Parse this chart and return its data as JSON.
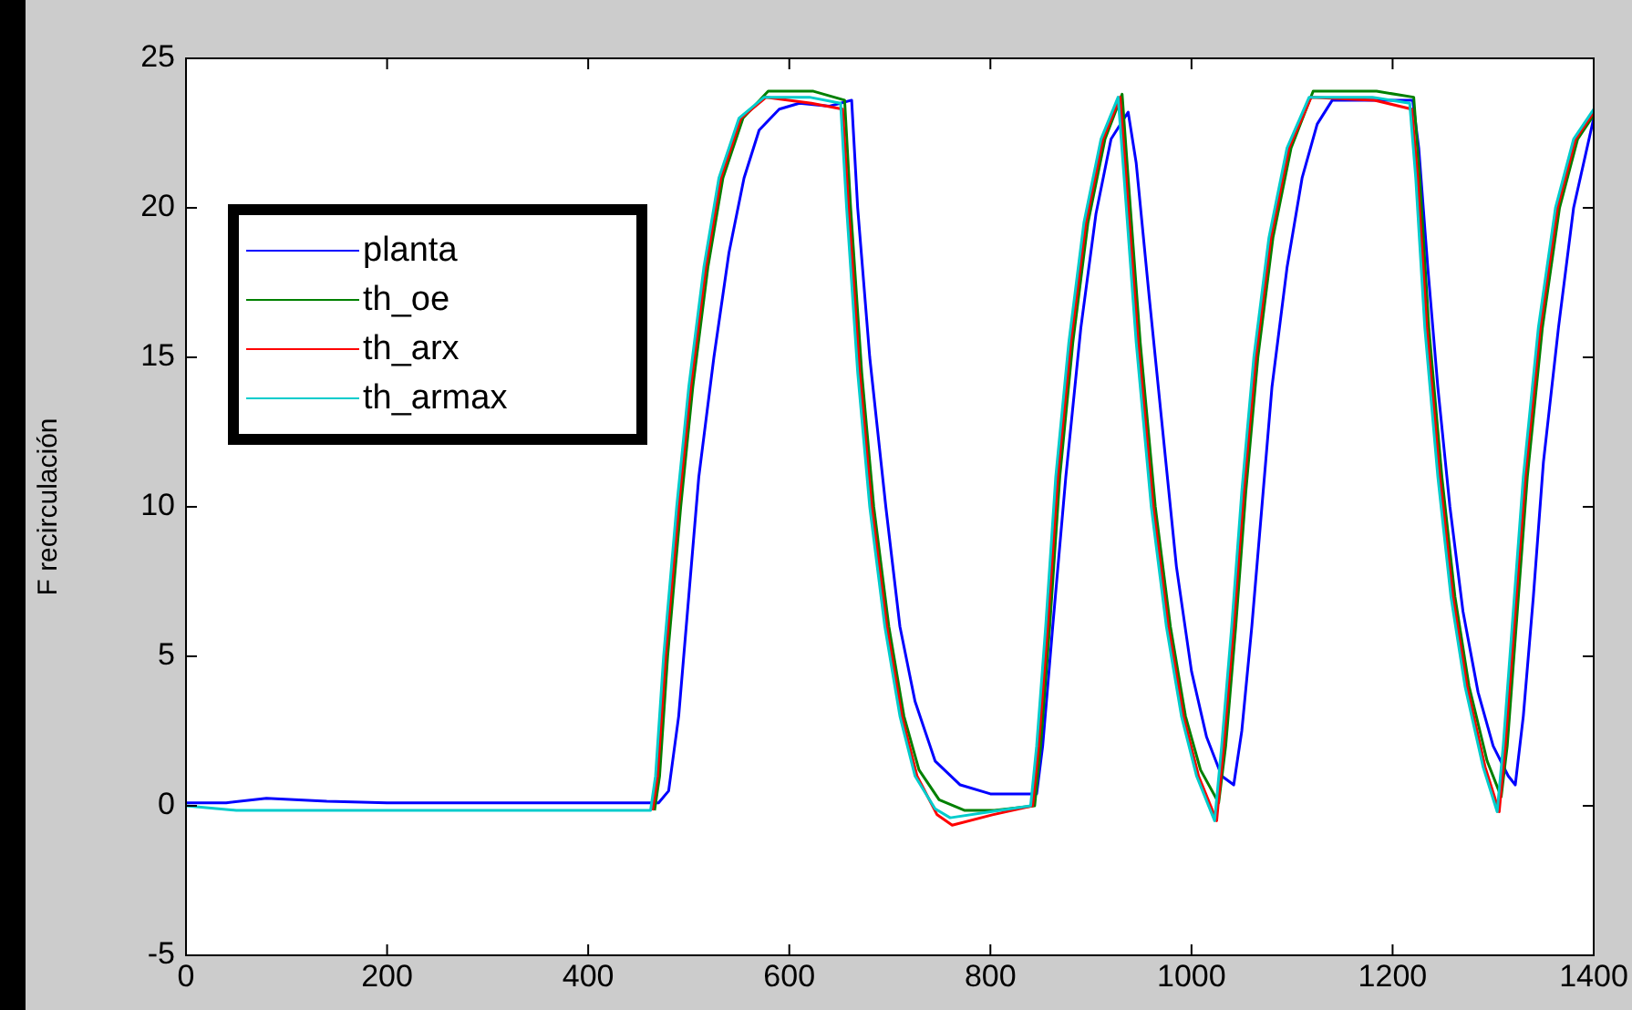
{
  "chart_data": {
    "type": "line",
    "ylabel": "F recirculación",
    "xlim": [
      0,
      1400
    ],
    "xticks": [
      0,
      200,
      400,
      600,
      800,
      1000,
      1200,
      1400
    ],
    "ylim": [
      -5,
      25
    ],
    "yticks": [
      -5,
      0,
      5,
      10,
      15,
      20,
      25
    ],
    "grid": false,
    "legend": "top left",
    "marker": "none",
    "line_style": "solid",
    "series": [
      {
        "name": "planta",
        "color": "#0000ff",
        "x": [
          0,
          40,
          80,
          140,
          200,
          470,
          480,
          490,
          500,
          510,
          525,
          540,
          555,
          570,
          590,
          610,
          640,
          662,
          668,
          680,
          696,
          710,
          725,
          745,
          770,
          800,
          846,
          852,
          862,
          875,
          890,
          905,
          920,
          937,
          945,
          958,
          970,
          985,
          1000,
          1015,
          1030,
          1042,
          1050,
          1060,
          1070,
          1080,
          1095,
          1110,
          1125,
          1140,
          1180,
          1220,
          1226,
          1235,
          1245,
          1257,
          1270,
          1285,
          1300,
          1315,
          1322,
          1330,
          1340,
          1350,
          1365,
          1380,
          1400
        ],
        "values": [
          0.1,
          0.1,
          0.25,
          0.15,
          0.1,
          0.1,
          0.5,
          3,
          7,
          11,
          15,
          18.5,
          21,
          22.6,
          23.3,
          23.5,
          23.4,
          23.6,
          20,
          15,
          10,
          6,
          3.5,
          1.5,
          0.7,
          0.4,
          0.4,
          2,
          6,
          11,
          16,
          19.8,
          22.3,
          23.2,
          21.5,
          17,
          13,
          8,
          4.5,
          2.3,
          1,
          0.7,
          2.5,
          6,
          10,
          14,
          18,
          21,
          22.8,
          23.6,
          23.6,
          23.6,
          22,
          18,
          14,
          10,
          6.5,
          3.8,
          2,
          1,
          0.7,
          3,
          7,
          11.5,
          16,
          20,
          23
        ]
      },
      {
        "name": "th_oe",
        "color": "#008000",
        "x": [
          466,
          471,
          479,
          492,
          504,
          519,
          534,
          554,
          579,
          624,
          655,
          661,
          672,
          684,
          699,
          714,
          729,
          749,
          774,
          804,
          844,
          850,
          859,
          869,
          882,
          897,
          914,
          931,
          937,
          949,
          964,
          979,
          994,
          1009,
          1027,
          1034,
          1044,
          1054,
          1066,
          1081,
          1099,
          1121,
          1184,
          1221,
          1227,
          1236,
          1249,
          1262,
          1276,
          1294,
          1308,
          1314,
          1324,
          1334,
          1349,
          1366,
          1384,
          1400
        ],
        "values": [
          -0.15,
          1,
          5,
          10,
          14,
          18,
          21,
          23,
          23.9,
          23.9,
          23.6,
          20,
          14.5,
          10,
          6,
          3,
          1.2,
          0.2,
          -0.15,
          -0.15,
          0,
          2,
          6,
          11,
          15.5,
          19.5,
          22.3,
          23.8,
          21,
          15.5,
          10,
          6,
          3,
          1.2,
          0.1,
          2,
          6,
          10.5,
          15,
          19,
          22,
          23.9,
          23.9,
          23.7,
          21,
          16,
          11,
          7,
          4,
          1.5,
          0.3,
          2,
          6.5,
          11,
          16,
          20,
          22.3,
          23.1
        ]
      },
      {
        "name": "th_arx",
        "color": "#ff0000",
        "x": [
          464,
          469,
          477,
          490,
          502,
          517,
          532,
          552,
          577,
          622,
          653,
          659,
          670,
          682,
          697,
          712,
          727,
          747,
          762,
          802,
          842,
          848,
          857,
          867,
          880,
          895,
          912,
          929,
          935,
          947,
          962,
          977,
          992,
          1007,
          1025,
          1032,
          1042,
          1052,
          1064,
          1079,
          1097,
          1119,
          1182,
          1219,
          1225,
          1234,
          1247,
          1260,
          1274,
          1292,
          1306,
          1312,
          1322,
          1332,
          1347,
          1364,
          1382,
          1400
        ],
        "values": [
          -0.15,
          1,
          5,
          10,
          14,
          18,
          21,
          23,
          23.7,
          23.5,
          23.3,
          20,
          14.5,
          10,
          6,
          3,
          1,
          -0.3,
          -0.65,
          -0.3,
          0,
          2,
          6,
          11,
          15.5,
          19.5,
          22.3,
          23.7,
          21,
          15.5,
          10,
          6,
          3,
          1,
          -0.5,
          2,
          6,
          10.5,
          15,
          19,
          22,
          23.7,
          23.6,
          23.3,
          21,
          16,
          11,
          7,
          4,
          1.3,
          -0.2,
          2,
          6.5,
          11,
          16,
          20,
          22.3,
          23.2
        ]
      },
      {
        "name": "th_armax",
        "color": "#00cccc",
        "x": [
          0,
          50,
          462,
          467,
          475,
          488,
          500,
          515,
          530,
          550,
          575,
          620,
          651,
          657,
          668,
          680,
          695,
          710,
          725,
          745,
          760,
          800,
          840,
          846,
          855,
          865,
          878,
          893,
          910,
          927,
          933,
          945,
          960,
          975,
          990,
          1005,
          1023,
          1030,
          1040,
          1050,
          1062,
          1077,
          1095,
          1117,
          1180,
          1217,
          1223,
          1232,
          1245,
          1258,
          1272,
          1290,
          1304,
          1310,
          1320,
          1330,
          1345,
          1362,
          1380,
          1400
        ],
        "values": [
          0,
          -0.15,
          -0.15,
          1,
          5,
          10,
          14,
          18,
          21,
          23,
          23.7,
          23.7,
          23.5,
          20,
          14.5,
          10,
          6,
          3,
          1,
          -0.1,
          -0.4,
          -0.2,
          0,
          2,
          6,
          11,
          15.5,
          19.5,
          22.3,
          23.7,
          21,
          15.5,
          10,
          6,
          3,
          1,
          -0.5,
          2,
          6,
          10.5,
          15,
          19,
          22,
          23.7,
          23.7,
          23.5,
          21,
          16,
          11,
          7,
          4,
          1.3,
          -0.2,
          2,
          6.5,
          11,
          16,
          20,
          22.3,
          23.3
        ]
      }
    ]
  }
}
